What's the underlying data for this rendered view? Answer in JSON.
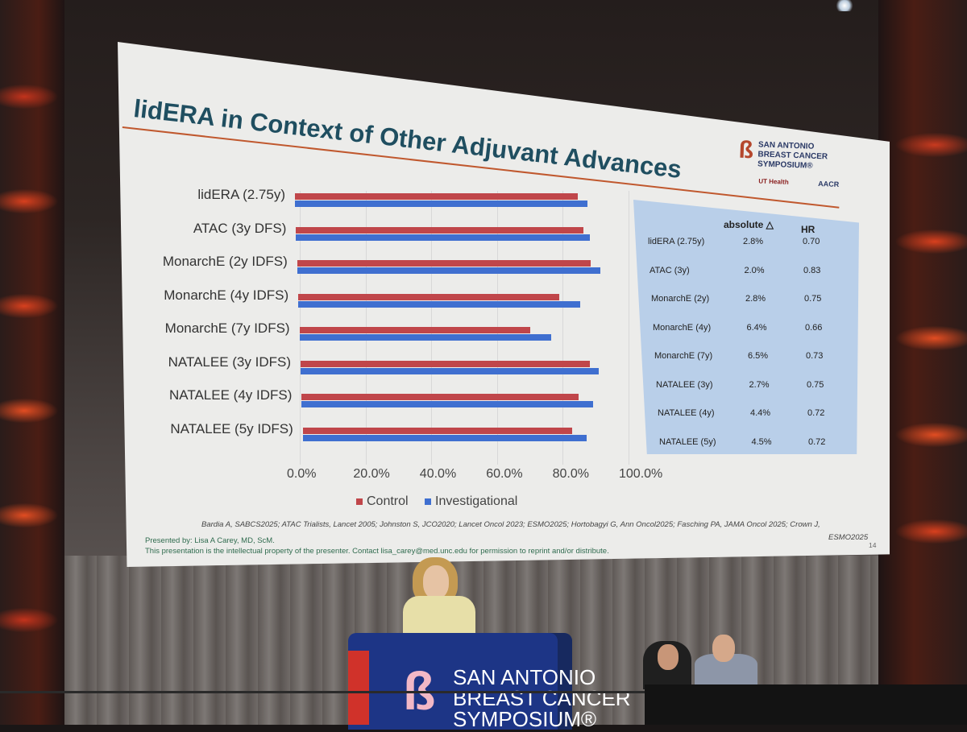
{
  "slide": {
    "title": "lidERA in Context of Other Adjuvant Advances",
    "logo": {
      "line1": "SAN ANTONIO",
      "line2": "BREAST CANCER",
      "line3": "SYMPOSIUM®",
      "sub_left": "UT Health",
      "sub_right": "AACR"
    },
    "chart_data": {
      "type": "bar",
      "orientation": "horizontal",
      "categories": [
        "lidERA (2.75y)",
        "ATAC (3y DFS)",
        "MonarchE (2y IDFS)",
        "MonarchE (4y IDFS)",
        "MonarchE (7y IDFS)",
        "NATALEE (3y IDFS)",
        "NATALEE (4y IDFS)",
        "NATALEE (5y IDFS)"
      ],
      "series": [
        {
          "name": "Control",
          "color": "#c0464a",
          "values": [
            86.1,
            87.4,
            89.3,
            79.4,
            70.1,
            88.1,
            84.2,
            81.9
          ]
        },
        {
          "name": "Investigational",
          "color": "#3f6fd0",
          "values": [
            88.9,
            89.4,
            92.1,
            85.8,
            76.6,
            90.8,
            88.6,
            86.4
          ]
        }
      ],
      "xlim": [
        0,
        100
      ],
      "x_ticks": [
        "0.0%",
        "20.0%",
        "40.0%",
        "60.0%",
        "80.0%",
        "100.0%"
      ],
      "legend_position": "bottom",
      "grid": true
    },
    "table": {
      "headers": [
        "absolute △",
        "HR"
      ],
      "rows": [
        {
          "name": "lidERA (2.75y)",
          "delta": "2.8%",
          "hr": "0.70"
        },
        {
          "name": "ATAC (3y)",
          "delta": "2.0%",
          "hr": "0.83"
        },
        {
          "name": "MonarchE (2y)",
          "delta": "2.8%",
          "hr": "0.75"
        },
        {
          "name": "MonarchE (4y)",
          "delta": "6.4%",
          "hr": "0.66"
        },
        {
          "name": "MonarchE (7y)",
          "delta": "6.5%",
          "hr": "0.73"
        },
        {
          "name": "NATALEE (3y)",
          "delta": "2.7%",
          "hr": "0.75"
        },
        {
          "name": "NATALEE (4y)",
          "delta": "4.4%",
          "hr": "0.72"
        },
        {
          "name": "NATALEE (5y)",
          "delta": "4.5%",
          "hr": "0.72"
        }
      ]
    },
    "references": "Bardia A, SABCS2025; ATAC Trialists, Lancet 2005; Johnston S, JCO2020; Lancet Oncol 2023; ESMO2025; Hortobagyi G, Ann Oncol2025; Fasching PA, JAMA Oncol 2025; Crown J,",
    "references_end": "ESMO2025",
    "presented_by": "Presented by: Lisa A Carey, MD, ScM.",
    "ip_notice": "This presentation is the intellectual property of the presenter. Contact lisa_carey@med.unc.edu for permission to reprint and/or distribute.",
    "page_number": "14"
  },
  "podium": {
    "line1": "SAN ANTONIO",
    "line2": "BREAST CANCER",
    "line3": "SYMPOSIUM®"
  },
  "colors": {
    "slide_background": "#ececea",
    "title": "#1f4e60",
    "accent_rule": "#c0582e",
    "table_background": "#b9cfe9",
    "podium": "#1d3586"
  }
}
